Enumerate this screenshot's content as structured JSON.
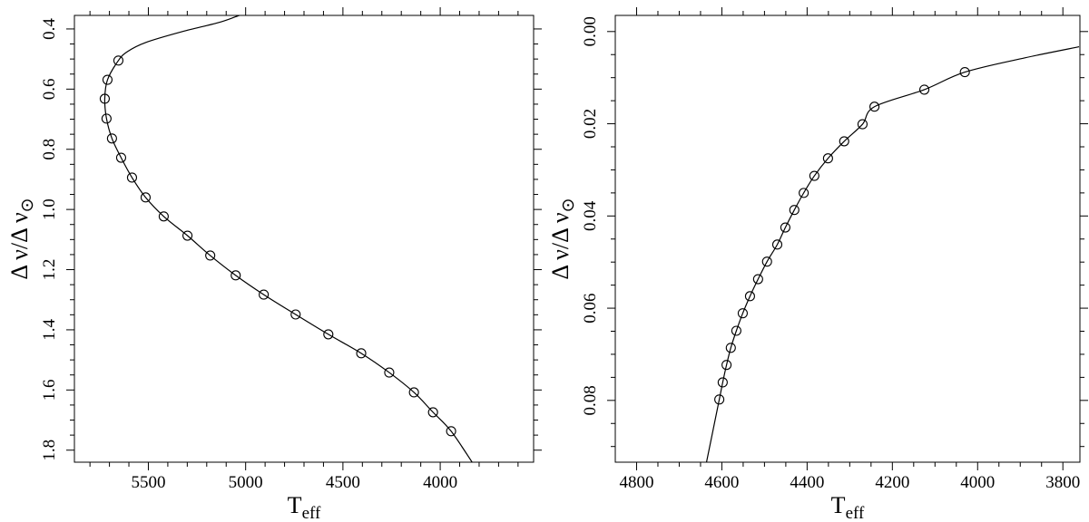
{
  "chart_data": [
    {
      "type": "line",
      "xlabel": "T",
      "xlabel_sub": "eff",
      "ylabel": "Δ ν/Δ ν",
      "ylabel_sub": "⊙",
      "xlim": [
        5880,
        3520
      ],
      "ylim": [
        1.84,
        0.355
      ],
      "xticks": [
        5500,
        5000,
        4500,
        4000
      ],
      "xminorticks": [
        5800,
        5700,
        5600,
        5400,
        5300,
        5200,
        5100,
        4900,
        4800,
        4700,
        4600,
        4400,
        4300,
        4200,
        4100,
        3900,
        3800,
        3700,
        3600
      ],
      "yticks": [
        0.4,
        0.6,
        0.8,
        {
          "value": 1,
          "label": "1.0"
        },
        1.2,
        1.4,
        1.6,
        1.8
      ],
      "yminorticks": [
        0.45,
        0.5,
        0.55,
        0.65,
        0.7,
        0.75,
        0.85,
        0.9,
        0.95,
        1.05,
        1.1,
        1.15,
        1.25,
        1.3,
        1.35,
        1.45,
        1.5,
        1.55,
        1.65,
        1.7,
        1.75
      ],
      "color": "#000000",
      "series": [
        {
          "style": "line",
          "x": [
            5033,
            5140,
            5327,
            5514,
            5607,
            5654,
            5710,
            5724,
            5715,
            5687,
            5640,
            5584,
            5514,
            5421,
            5299,
            5182,
            5051,
            4907,
            4743,
            4575,
            4406,
            4262,
            4135,
            4037,
            3944,
            3836
          ],
          "values": [
            0.355,
            0.379,
            0.409,
            0.445,
            0.475,
            0.505,
            0.569,
            0.632,
            0.698,
            0.764,
            0.828,
            0.894,
            0.96,
            1.023,
            1.087,
            1.153,
            1.219,
            1.283,
            1.349,
            1.415,
            1.478,
            1.542,
            1.608,
            1.674,
            1.737,
            1.84
          ]
        },
        {
          "style": "markers",
          "x": [
            5654,
            5710,
            5724,
            5715,
            5687,
            5640,
            5584,
            5514,
            5421,
            5299,
            5182,
            5051,
            4907,
            4743,
            4575,
            4406,
            4262,
            4135,
            4037,
            3944
          ],
          "values": [
            0.505,
            0.569,
            0.632,
            0.698,
            0.764,
            0.828,
            0.894,
            0.96,
            1.023,
            1.087,
            1.153,
            1.219,
            1.283,
            1.349,
            1.415,
            1.478,
            1.542,
            1.608,
            1.674,
            1.737
          ]
        }
      ]
    },
    {
      "type": "line",
      "xlabel": "T",
      "xlabel_sub": "eff",
      "ylabel": "Δ ν/Δ ν",
      "ylabel_sub": "⊙",
      "xlim": [
        4850,
        3760
      ],
      "ylim": [
        0.0934,
        -0.0035
      ],
      "xticks": [
        4800,
        4600,
        4400,
        4200,
        4000,
        3800
      ],
      "xminorticks": [
        4750,
        4700,
        4650,
        4550,
        4500,
        4450,
        4350,
        4300,
        4250,
        4150,
        4100,
        4050,
        3950,
        3900,
        3850
      ],
      "yticks": [
        {
          "value": 0,
          "label": "0.00"
        },
        {
          "value": 0.02,
          "label": "0.02"
        },
        {
          "value": 0.04,
          "label": "0.04"
        },
        {
          "value": 0.06,
          "label": "0.06"
        },
        {
          "value": 0.08,
          "label": "0.08"
        }
      ],
      "yminorticks": [
        0.005,
        0.01,
        0.015,
        0.025,
        0.03,
        0.035,
        0.045,
        0.05,
        0.055,
        0.065,
        0.07,
        0.075,
        0.085,
        0.09
      ],
      "color": "#000000",
      "series": [
        {
          "style": "line",
          "x": [
            4636,
            4606,
            4598,
            4589,
            4579,
            4566,
            4551,
            4534,
            4515,
            4494,
            4470,
            4451,
            4430,
            4408,
            4383,
            4351,
            4313,
            4270,
            4242,
            4125,
            4030,
            3889,
            3762
          ],
          "values": [
            0.0934,
            0.0798,
            0.0761,
            0.0723,
            0.0686,
            0.0649,
            0.0611,
            0.0574,
            0.0537,
            0.0499,
            0.0462,
            0.0425,
            0.0387,
            0.035,
            0.0313,
            0.0275,
            0.0238,
            0.0201,
            0.0163,
            0.0126,
            0.0088,
            0.0057,
            0.0033
          ]
        },
        {
          "style": "markers",
          "x": [
            4606,
            4598,
            4589,
            4579,
            4566,
            4551,
            4534,
            4515,
            4494,
            4470,
            4451,
            4430,
            4408,
            4383,
            4351,
            4313,
            4270,
            4242,
            4125,
            4030
          ],
          "values": [
            0.0798,
            0.0761,
            0.0723,
            0.0686,
            0.0649,
            0.0611,
            0.0574,
            0.0537,
            0.0499,
            0.0462,
            0.0425,
            0.0387,
            0.035,
            0.0313,
            0.0275,
            0.0238,
            0.0201,
            0.0163,
            0.0126,
            0.0088
          ]
        }
      ]
    }
  ]
}
